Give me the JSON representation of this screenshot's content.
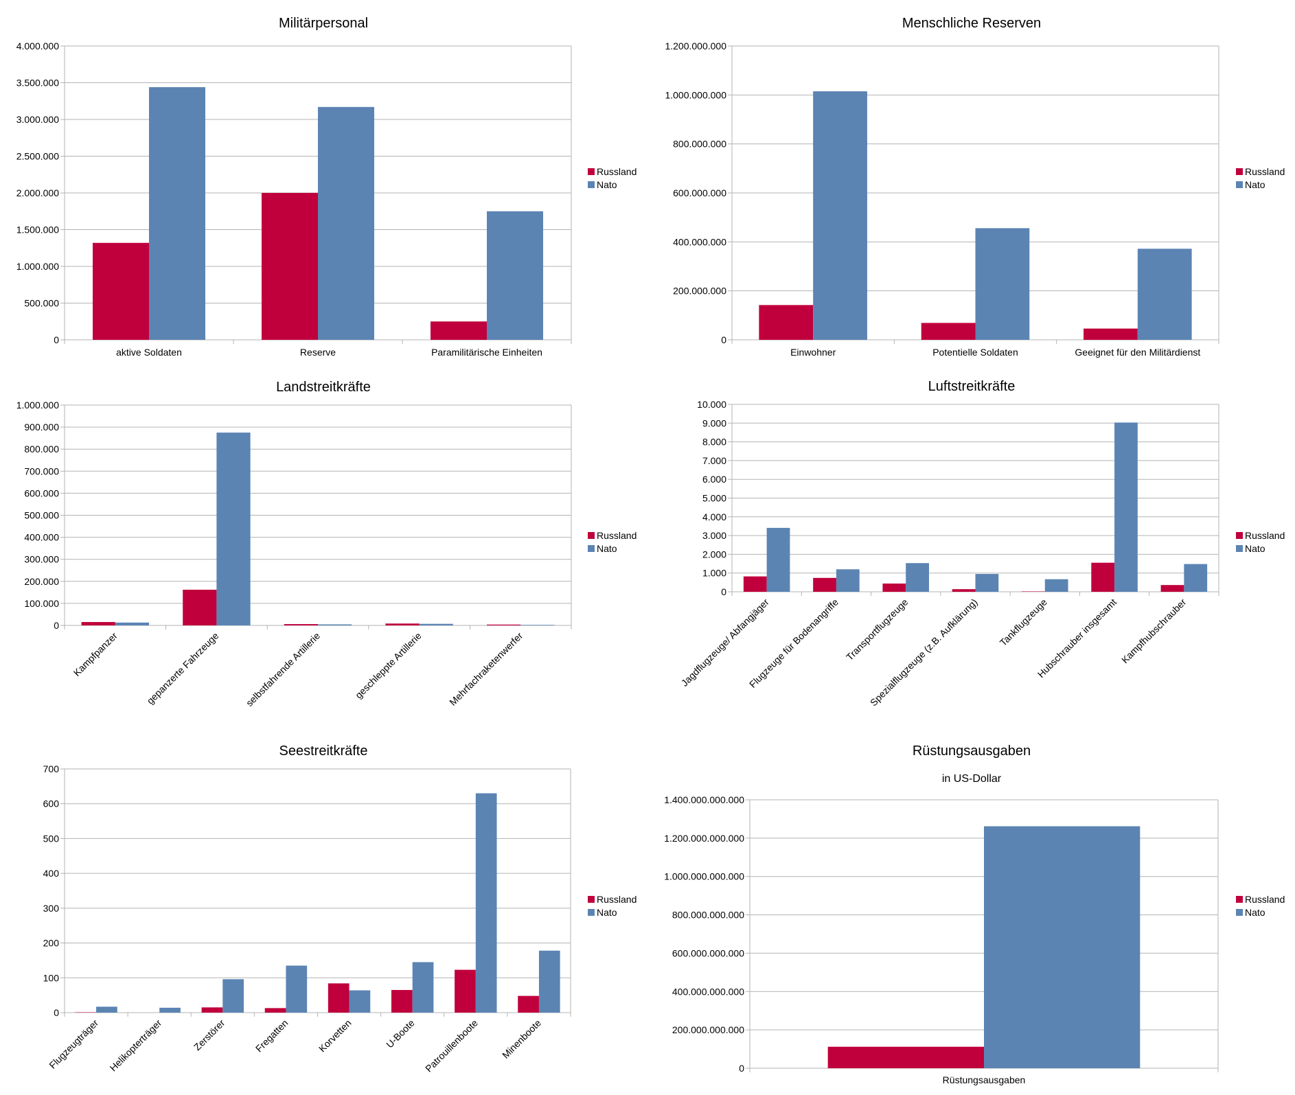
{
  "colors": {
    "russland": "#c0003c",
    "nato": "#5b84b3",
    "grid": "#b3b3b3",
    "axis": "#b3b3b3"
  },
  "chart_data": [
    {
      "type": "bar",
      "title": "Militärpersonal",
      "categories": [
        "aktive Soldaten",
        "Reserve",
        "Paramilitärische Einheiten"
      ],
      "series": [
        {
          "name": "Russland",
          "values": [
            1320000,
            2000000,
            250000
          ]
        },
        {
          "name": "Nato",
          "values": [
            3440000,
            3170000,
            1750000
          ]
        }
      ],
      "ylim": [
        0,
        4000000
      ],
      "yticks": [
        0,
        500000,
        1000000,
        1500000,
        2000000,
        2500000,
        3000000,
        3500000,
        4000000
      ],
      "ytick_labels": [
        "0",
        "500.000",
        "1.000.000",
        "1.500.000",
        "2.000.000",
        "2.500.000",
        "3.000.000",
        "3.500.000",
        "4.000.000"
      ],
      "grid": true,
      "legend": "right"
    },
    {
      "type": "bar",
      "title": "Menschliche Reserven",
      "categories": [
        "Einwohner",
        "Potentielle Soldaten",
        "Geeignet für den Militärdienst"
      ],
      "series": [
        {
          "name": "Russland",
          "values": [
            142000000,
            69000000,
            46000000
          ]
        },
        {
          "name": "Nato",
          "values": [
            1015000000,
            456000000,
            372000000
          ]
        }
      ],
      "ylim": [
        0,
        1200000000
      ],
      "yticks": [
        0,
        200000000,
        400000000,
        600000000,
        800000000,
        1000000000,
        1200000000
      ],
      "ytick_labels": [
        "0",
        "200.000.000",
        "400.000.000",
        "600.000.000",
        "800.000.000",
        "1.000.000.000",
        "1.200.000.000"
      ],
      "grid": true,
      "legend": "right"
    },
    {
      "type": "bar",
      "title": "Landstreitkräfte",
      "categories": [
        "Kampfpanzer",
        "gepanzerte Fahrzeuge",
        "selbstfahrende Artillerie",
        "geschleppte Artillerie",
        "Mehrfachraketenwerfer"
      ],
      "series": [
        {
          "name": "Russland",
          "values": [
            15400,
            162000,
            6000,
            8500,
            3800
          ]
        },
        {
          "name": "Nato",
          "values": [
            13000,
            875000,
            4700,
            7200,
            2400
          ]
        }
      ],
      "ylim": [
        0,
        1000000
      ],
      "yticks": [
        0,
        100000,
        200000,
        300000,
        400000,
        500000,
        600000,
        700000,
        800000,
        900000,
        1000000
      ],
      "ytick_labels": [
        "0",
        "100.000",
        "200.000",
        "300.000",
        "400.000",
        "500.000",
        "600.000",
        "700.000",
        "800.000",
        "900.000",
        "1.000.000"
      ],
      "grid": true,
      "legend": "right"
    },
    {
      "type": "bar",
      "title": "Luftstreitkräfte",
      "categories": [
        "Jagdflugzeuge/ Abfangjäger",
        "Flugzeuge für Bodenangriffe",
        "Transportflugzeuge",
        "Spezialflugzeuge (z.B. Aufklärung)",
        "Tankflugzeuge",
        "Hubschrauber insgesamt",
        "Kampfhubschrauber"
      ],
      "series": [
        {
          "name": "Russland",
          "values": [
            820,
            740,
            440,
            140,
            20,
            1550,
            360
          ]
        },
        {
          "name": "Nato",
          "values": [
            3410,
            1200,
            1530,
            950,
            670,
            9030,
            1480
          ]
        }
      ],
      "ylim": [
        0,
        10000
      ],
      "yticks": [
        0,
        1000,
        2000,
        3000,
        4000,
        5000,
        6000,
        7000,
        8000,
        9000,
        10000
      ],
      "ytick_labels": [
        "0",
        "1.000",
        "2.000",
        "3.000",
        "4.000",
        "5.000",
        "6.000",
        "7.000",
        "8.000",
        "9.000",
        "10.000"
      ],
      "grid": true,
      "legend": "right"
    },
    {
      "type": "bar",
      "title": "Seestreitkräfte",
      "categories": [
        "Flugzeugträger",
        "Helikopterträger",
        "Zerstörer",
        "Fregatten",
        "Korvetten",
        "U-Boote",
        "Patrouillenboote",
        "Minenboote"
      ],
      "series": [
        {
          "name": "Russland",
          "values": [
            1,
            0,
            15,
            13,
            84,
            65,
            123,
            48
          ]
        },
        {
          "name": "Nato",
          "values": [
            17,
            14,
            96,
            135,
            64,
            145,
            630,
            178
          ]
        }
      ],
      "ylim": [
        0,
        700
      ],
      "yticks": [
        0,
        100,
        200,
        300,
        400,
        500,
        600,
        700
      ],
      "ytick_labels": [
        "0",
        "100",
        "200",
        "300",
        "400",
        "500",
        "600",
        "700"
      ],
      "grid": true,
      "legend": "right"
    },
    {
      "type": "bar",
      "title": "Rüstungsausgaben",
      "subtitle": "in US-Dollar",
      "categories": [
        "Rüstungsausgaben"
      ],
      "series": [
        {
          "name": "Russland",
          "values": [
            112000000000
          ]
        },
        {
          "name": "Nato",
          "values": [
            1262000000000
          ]
        }
      ],
      "ylim": [
        0,
        1400000000000
      ],
      "yticks": [
        0,
        200000000000,
        400000000000,
        600000000000,
        800000000000,
        1000000000000,
        1200000000000,
        1400000000000
      ],
      "ytick_labels": [
        "0",
        "200.000.000.000",
        "400.000.000.000",
        "600.000.000.000",
        "800.000.000.000",
        "1.000.000.000.000",
        "1.200.000.000.000",
        "1.400.000.000.000"
      ],
      "grid": true,
      "legend": "right"
    }
  ]
}
